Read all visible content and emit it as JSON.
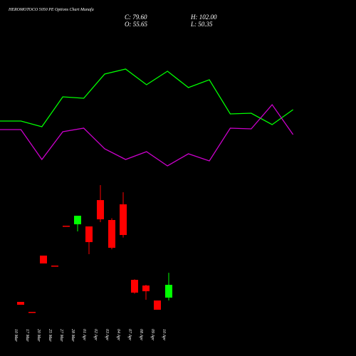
{
  "chart_data": [
    {
      "type": "candlestick",
      "title": "HEROMOTOCO 5050 PE Options Chart Munafa",
      "ohlc_labels": [
        "C: 79.60",
        "H: 102.00",
        "O: 55.65",
        "L: 50.35"
      ],
      "categories": [
        "10 Mar",
        "17 Mar",
        "20 Mar",
        "25 Mar",
        "27 Mar",
        "28 Mar",
        "01 Apr",
        "02 Apr",
        "03 Apr",
        "04 Apr",
        "07 Apr",
        "08 Apr",
        "09 Apr",
        "10 Apr"
      ],
      "open": [
        47.7,
        29.0,
        134.2,
        115.5,
        190.0,
        192.7,
        188.7,
        237.9,
        200.7,
        230.0,
        88.9,
        78.3,
        50.3,
        55.65
      ],
      "high": [
        47.7,
        29.0,
        134.2,
        115.5,
        190.0,
        208.7,
        188.7,
        265.9,
        204.0,
        252.6,
        90.0,
        79.6,
        50.3,
        102.0
      ],
      "low": [
        42.3,
        29.0,
        119.5,
        115.5,
        190.0,
        179.4,
        136.8,
        196.7,
        146.0,
        168.0,
        63.0,
        51.7,
        33.0,
        50.35
      ],
      "close": [
        42.3,
        29.0,
        119.5,
        115.5,
        190.0,
        208.7,
        159.4,
        202.0,
        148.8,
        172.7,
        65.0,
        67.6,
        33.0,
        79.6
      ],
      "up_color": "#00ff00",
      "down_color": "#ff0000",
      "ylim": [
        13.1,
        279.2
      ]
    },
    {
      "type": "line",
      "series": [
        {
          "color": "#00ff00",
          "values": [
            40,
            40,
            36,
            57,
            56,
            73,
            76.5,
            65.5,
            75,
            63.5,
            69,
            45,
            45.5,
            37.5,
            48
          ]
        },
        {
          "color": "#cc00cc",
          "values": [
            34,
            34,
            13,
            32.5,
            35,
            20.5,
            13,
            18.5,
            8.5,
            17,
            12,
            35,
            34.5,
            51.5,
            30.5
          ]
        }
      ],
      "ylim": [
        0,
        100
      ]
    }
  ]
}
